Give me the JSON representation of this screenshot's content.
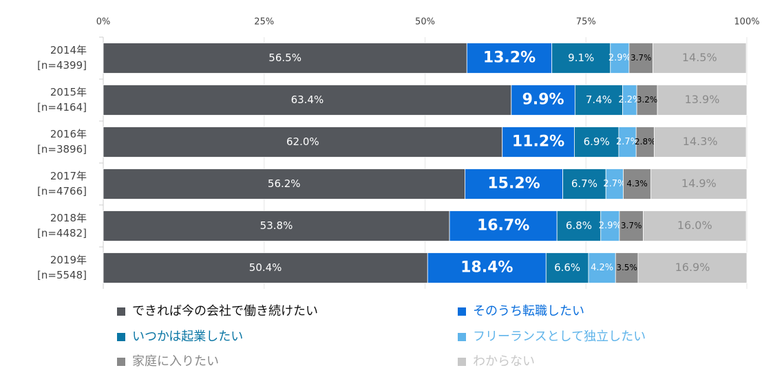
{
  "chart_data": {
    "type": "stacked-bar-horizontal",
    "categories": [
      [
        "2014年",
        "[n=4399]"
      ],
      [
        "2015年",
        "[n=4164]"
      ],
      [
        "2016年",
        "[n=3896]"
      ],
      [
        "2017年",
        "[n=4766]"
      ],
      [
        "2018年",
        "[n=4482]"
      ],
      [
        "2019年",
        "[n=5548]"
      ]
    ],
    "series": [
      {
        "name": "できれば今の会社で働き続けたい",
        "color": "#54575c",
        "values": [
          56.5,
          63.4,
          62.0,
          56.2,
          53.8,
          50.4
        ],
        "value_labels": [
          "56.5%",
          "63.4%",
          "62.0%",
          "56.2%",
          "53.8%",
          "50.4%"
        ]
      },
      {
        "name": "そのうち転職したい",
        "color": "#0a6edc",
        "values": [
          13.2,
          9.9,
          11.2,
          15.2,
          16.7,
          18.4
        ],
        "value_labels": [
          "13.2%",
          "9.9%",
          "11.2%",
          "15.2%",
          "16.7%",
          "18.4%"
        ]
      },
      {
        "name": "いつかは起業したい",
        "color": "#0a76a4",
        "values": [
          9.1,
          7.4,
          6.9,
          6.7,
          6.8,
          6.6
        ],
        "value_labels": [
          "9.1%",
          "7.4%",
          "6.9%",
          "6.7%",
          "6.8%",
          "6.6%"
        ]
      },
      {
        "name": "フリーランスとして独立したい",
        "color": "#5fb4ea",
        "values": [
          2.9,
          2.2,
          2.7,
          2.7,
          2.9,
          4.2
        ],
        "value_labels": [
          "2.9%",
          "2.2%",
          "2.7%",
          "2.7%",
          "2.9%",
          "4.2%"
        ]
      },
      {
        "name": "家庭に入りたい",
        "color": "#898989",
        "values": [
          3.7,
          3.2,
          2.8,
          4.3,
          3.7,
          3.5
        ],
        "value_labels": [
          "3.7%",
          "3.2%",
          "2.8%",
          "4.3%",
          "3.7%",
          "3.5%"
        ]
      },
      {
        "name": "わからない",
        "color": "#c8c8c8",
        "values": [
          14.5,
          13.9,
          14.3,
          14.9,
          16.0,
          16.9
        ],
        "value_labels": [
          "14.5%",
          "13.9%",
          "14.3%",
          "14.9%",
          "16.0%",
          "16.9%"
        ]
      }
    ],
    "xlim": [
      0,
      100
    ],
    "xticks": [
      {
        "value": 0,
        "label": "0%"
      },
      {
        "value": 25,
        "label": "25%"
      },
      {
        "value": 50,
        "label": "50%"
      },
      {
        "value": 75,
        "label": "75%"
      },
      {
        "value": 100,
        "label": "100%"
      }
    ],
    "grid": true
  }
}
